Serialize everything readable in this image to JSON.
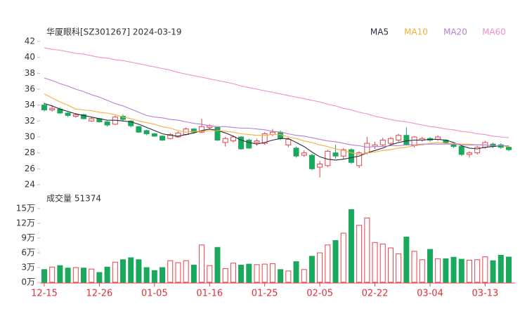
{
  "chart_data": [
    {
      "type": "candlestick",
      "title": "华厦眼科[SZ301267] 2024-03-19",
      "categories": [
        "12-15",
        null,
        null,
        null,
        null,
        null,
        null,
        "12-26",
        null,
        null,
        null,
        null,
        null,
        null,
        "01-05",
        null,
        null,
        null,
        null,
        null,
        null,
        "01-16",
        null,
        null,
        null,
        null,
        null,
        null,
        "01-25",
        null,
        null,
        null,
        null,
        null,
        null,
        "02-05",
        null,
        null,
        null,
        null,
        null,
        null,
        "02-22",
        null,
        null,
        null,
        null,
        null,
        null,
        "03-04",
        null,
        null,
        null,
        null,
        null,
        null,
        "03-13",
        null,
        null,
        null
      ],
      "open": [
        34.0,
        33.4,
        33.5,
        33.0,
        32.6,
        32.8,
        32.0,
        32.3,
        31.9,
        31.6,
        32.6,
        32.0,
        31.3,
        30.8,
        30.4,
        30.1,
        29.8,
        30.0,
        30.3,
        31.0,
        30.6,
        31.2,
        31.2,
        29.3,
        29.5,
        30.0,
        29.6,
        29.3,
        29.2,
        30.3,
        30.6,
        29.0,
        28.6,
        27.7,
        27.7,
        26.2,
        26.4,
        28.0,
        27.6,
        28.4,
        26.4,
        28.0,
        28.8,
        29.0,
        29.2,
        29.6,
        30.2,
        28.9,
        29.6,
        29.8,
        29.7,
        29.6,
        29.0,
        28.8,
        27.8,
        28.0,
        28.7,
        29.1,
        29.0,
        28.7
      ],
      "high": [
        34.3,
        34.0,
        33.7,
        33.1,
        33.0,
        32.9,
        32.5,
        32.4,
        32.0,
        32.7,
        32.8,
        32.1,
        31.4,
        30.9,
        30.5,
        30.2,
        30.5,
        30.7,
        31.2,
        31.1,
        32.3,
        31.6,
        31.3,
        30.0,
        30.2,
        30.1,
        29.8,
        29.8,
        30.6,
        31.0,
        30.8,
        29.9,
        28.8,
        28.3,
        27.9,
        27.0,
        28.4,
        29.0,
        28.6,
        28.6,
        28.2,
        30.0,
        29.4,
        29.9,
        30.0,
        30.4,
        31.2,
        30.1,
        30.0,
        30.0,
        30.2,
        29.7,
        29.3,
        29.0,
        28.2,
        28.9,
        29.5,
        29.3,
        29.2,
        28.9
      ],
      "low": [
        33.2,
        33.2,
        32.9,
        32.5,
        32.4,
        32.2,
        31.9,
        31.8,
        31.3,
        31.5,
        32.0,
        31.2,
        30.5,
        30.2,
        30.0,
        29.5,
        29.7,
        29.9,
        30.2,
        30.4,
        30.5,
        30.9,
        29.5,
        28.8,
        29.3,
        28.4,
        28.5,
        28.9,
        29.0,
        30.1,
        29.6,
        28.7,
        27.4,
        27.5,
        25.8,
        24.9,
        26.2,
        27.3,
        27.2,
        26.6,
        26.1,
        27.8,
        28.5,
        28.8,
        29.0,
        29.4,
        28.9,
        28.7,
        29.4,
        29.4,
        29.5,
        29.1,
        28.6,
        27.6,
        27.4,
        27.8,
        28.5,
        28.6,
        28.5,
        28.2
      ],
      "close": [
        33.4,
        33.6,
        33.0,
        32.7,
        32.8,
        32.3,
        32.3,
        31.9,
        31.5,
        32.5,
        32.2,
        31.4,
        30.6,
        30.4,
        30.1,
        29.6,
        30.3,
        30.5,
        31.0,
        30.6,
        31.3,
        31.4,
        29.6,
        29.8,
        30.0,
        28.5,
        28.6,
        29.5,
        30.4,
        30.6,
        29.8,
        29.7,
        27.6,
        28.0,
        26.0,
        26.6,
        28.2,
        27.6,
        28.4,
        26.8,
        28.0,
        29.2,
        29.0,
        29.6,
        29.8,
        30.2,
        29.0,
        30.0,
        29.8,
        29.6,
        30.0,
        29.3,
        28.8,
        27.8,
        28.0,
        28.7,
        29.3,
        28.8,
        28.7,
        28.4
      ],
      "up_color": "#e8424a",
      "down_color": "#1aa85c",
      "series": [
        {
          "name": "MA5",
          "color": "#2b2b3a",
          "values": [
            34.2,
            33.9,
            33.5,
            33.2,
            32.9,
            32.7,
            32.5,
            32.3,
            32.1,
            32.1,
            32.0,
            31.9,
            31.6,
            31.2,
            30.8,
            30.4,
            30.2,
            30.1,
            30.3,
            30.5,
            30.8,
            31.0,
            30.8,
            30.5,
            30.1,
            29.6,
            29.3,
            29.1,
            29.3,
            29.6,
            29.8,
            29.8,
            29.3,
            28.8,
            28.1,
            27.5,
            27.2,
            27.1,
            27.2,
            27.4,
            27.6,
            28.0,
            28.3,
            28.6,
            29.0,
            29.3,
            29.5,
            29.6,
            29.6,
            29.7,
            29.7,
            29.6,
            29.3,
            28.9,
            28.6,
            28.5,
            28.7,
            28.8,
            28.9,
            28.8
          ]
        },
        {
          "name": "MA10",
          "color": "#f5b041",
          "values": [
            35.4,
            34.9,
            34.4,
            34.0,
            33.5,
            33.4,
            33.3,
            33.1,
            33.0,
            32.8,
            32.5,
            32.3,
            32.0,
            31.8,
            31.6,
            31.3,
            31.1,
            30.8,
            30.6,
            30.7,
            30.7,
            30.8,
            30.8,
            30.7,
            30.6,
            30.4,
            30.3,
            30.2,
            30.2,
            30.3,
            30.3,
            30.0,
            29.8,
            29.5,
            29.3,
            29.0,
            28.8,
            28.5,
            28.3,
            28.0,
            27.8,
            28.0,
            28.1,
            28.3,
            28.4,
            28.6,
            28.7,
            28.9,
            29.0,
            29.2,
            29.3,
            29.2,
            29.2,
            29.1,
            29.1,
            29.0,
            29.0,
            28.9,
            28.9,
            28.8
          ]
        },
        {
          "name": "MA20",
          "color": "#b57fd9",
          "values": [
            37.4,
            37.1,
            36.7,
            36.4,
            36.0,
            35.7,
            35.3,
            35.0,
            34.6,
            34.2,
            33.9,
            33.5,
            33.1,
            32.7,
            32.5,
            32.4,
            32.2,
            32.1,
            31.9,
            31.7,
            31.6,
            31.4,
            31.3,
            31.3,
            31.2,
            31.1,
            31.1,
            31.0,
            30.9,
            30.7,
            30.6,
            30.4,
            30.2,
            30.1,
            29.9,
            29.7,
            29.5,
            29.4,
            29.2,
            29.0,
            28.9,
            28.7,
            28.8,
            28.8,
            28.9,
            28.9,
            29.0,
            29.0,
            29.1,
            29.1,
            29.1,
            29.1,
            29.1,
            29.0,
            29.0,
            29.0,
            29.0,
            28.9,
            28.9,
            28.9
          ]
        },
        {
          "name": "MA60",
          "color": "#f08fcb",
          "values": [
            41.2,
            41.0,
            40.9,
            40.7,
            40.5,
            40.4,
            40.2,
            40.0,
            39.9,
            39.7,
            39.6,
            39.4,
            39.2,
            39.0,
            38.8,
            38.6,
            38.4,
            38.1,
            37.9,
            37.7,
            37.5,
            37.3,
            37.1,
            36.9,
            36.7,
            36.4,
            36.2,
            36.0,
            35.8,
            35.6,
            35.4,
            35.2,
            35.0,
            34.8,
            34.6,
            34.4,
            34.1,
            33.9,
            33.6,
            33.4,
            33.1,
            32.9,
            32.6,
            32.4,
            32.2,
            32.0,
            31.9,
            31.7,
            31.5,
            31.3,
            31.2,
            31.0,
            30.9,
            30.7,
            30.6,
            30.4,
            30.3,
            30.1,
            30.0,
            29.9
          ]
        }
      ],
      "ylim": [
        24,
        42
      ],
      "yticks": [
        24,
        26,
        28,
        30,
        32,
        34,
        36,
        38,
        40,
        42
      ],
      "grid": false
    },
    {
      "type": "bar",
      "title": "成交量 51374",
      "values": [
        2.6,
        3.1,
        3.4,
        2.9,
        3.0,
        2.9,
        2.7,
        2.0,
        3.1,
        4.1,
        4.6,
        5.0,
        4.6,
        3.0,
        2.4,
        3.0,
        4.4,
        4.0,
        4.4,
        3.5,
        7.6,
        3.4,
        7.1,
        2.8,
        3.9,
        3.5,
        3.7,
        3.6,
        3.7,
        3.8,
        2.6,
        2.3,
        4.2,
        2.6,
        5.3,
        6.0,
        7.6,
        8.5,
        10.0,
        14.8,
        11.6,
        13.1,
        8.1,
        7.8,
        7.0,
        5.8,
        9.2,
        6.3,
        4.6,
        6.7,
        4.8,
        4.8,
        5.1,
        4.7,
        4.5,
        4.6,
        5.2,
        4.4,
        5.5,
        5.1374
      ],
      "ylim": [
        0,
        15
      ],
      "yticks": [
        {
          "value": 0,
          "label": "0万"
        },
        {
          "value": 3,
          "label": "3万"
        },
        {
          "value": 6,
          "label": "6万"
        },
        {
          "value": 9,
          "label": "9万"
        },
        {
          "value": 12,
          "label": "12万"
        },
        {
          "value": 15,
          "label": "15万"
        }
      ],
      "grid": false
    }
  ]
}
